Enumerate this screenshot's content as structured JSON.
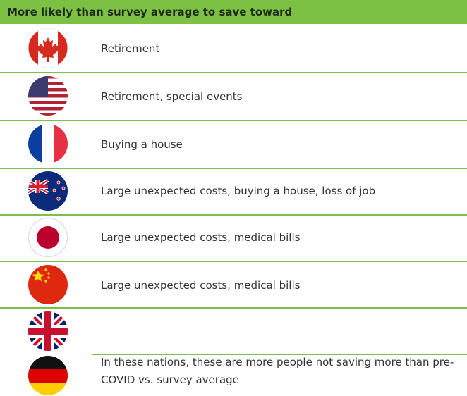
{
  "header": {
    "title": "More likely than survey average to save toward"
  },
  "rows": [
    {
      "text": "Retirement"
    },
    {
      "text": "Retirement, special events"
    },
    {
      "text": "Buying a house"
    },
    {
      "text": "Large unexpected costs, buying a house, loss of job"
    },
    {
      "text": "Large unexpected costs, medical bills"
    },
    {
      "text": "Large unexpected costs, medical bills"
    },
    {
      "text": "In these nations, these are more people not saving more than pre-COVID vs. survey average"
    }
  ]
}
